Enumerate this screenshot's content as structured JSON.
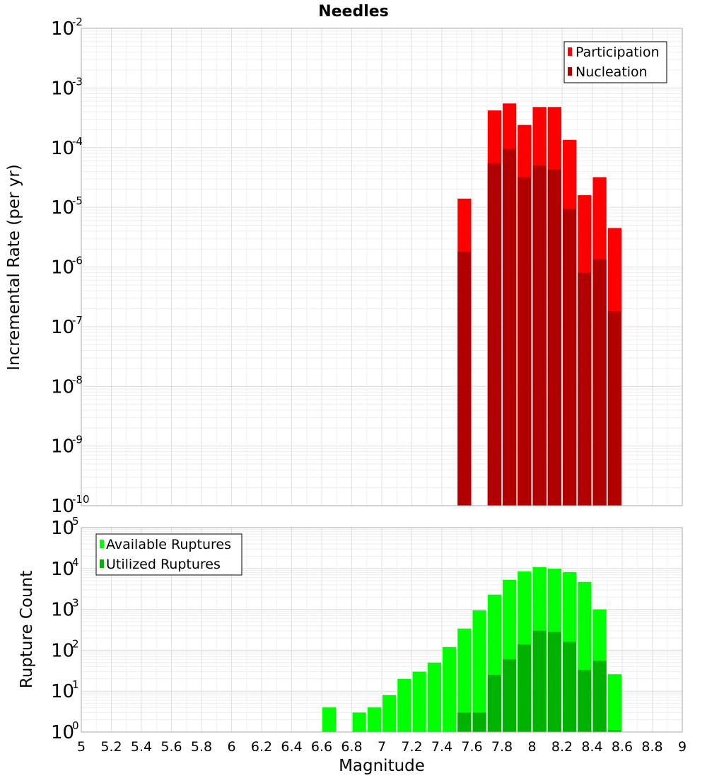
{
  "chart_data": [
    {
      "type": "bar",
      "title": "Needles",
      "xlabel": "Magnitude",
      "ylabel": "Incremental Rate (per yr)",
      "yscale": "log",
      "ylim_exp": [
        -10,
        -2
      ],
      "xlim": [
        5,
        9
      ],
      "bin_width": 0.1,
      "legend_position": "top-right",
      "series": [
        {
          "name": "Participation",
          "color": "#ff0000",
          "points": [
            [
              7.55,
              1.4e-05
            ],
            [
              7.75,
              0.00042
            ],
            [
              7.85,
              0.00055
            ],
            [
              7.95,
              0.00024
            ],
            [
              8.05,
              0.00048
            ],
            [
              8.15,
              0.00048
            ],
            [
              8.25,
              0.000135
            ],
            [
              8.35,
              1.6e-05
            ],
            [
              8.45,
              3.2e-05
            ],
            [
              8.55,
              4.5e-06
            ]
          ]
        },
        {
          "name": "Nucleation",
          "color": "#b20000",
          "points": [
            [
              7.55,
              1.8e-06
            ],
            [
              7.75,
              5.5e-05
            ],
            [
              7.85,
              9.5e-05
            ],
            [
              7.95,
              3.2e-05
            ],
            [
              8.05,
              5e-05
            ],
            [
              8.15,
              4.3e-05
            ],
            [
              8.25,
              9.5e-06
            ],
            [
              8.35,
              8e-07
            ],
            [
              8.45,
              1.35e-06
            ],
            [
              8.55,
              1.8e-07
            ]
          ]
        }
      ]
    },
    {
      "type": "bar",
      "title": "",
      "xlabel": "Magnitude",
      "ylabel": "Rupture Count",
      "yscale": "log",
      "ylim_exp": [
        0,
        5
      ],
      "xlim": [
        5,
        9
      ],
      "bin_width": 0.1,
      "legend_position": "top-left",
      "xticks": [
        "5",
        "5.2",
        "5.4",
        "5.6",
        "5.8",
        "6",
        "6.2",
        "6.4",
        "6.6",
        "6.8",
        "7",
        "7.2",
        "7.4",
        "7.6",
        "7.8",
        "8",
        "8.2",
        "8.4",
        "8.6",
        "8.8",
        "9"
      ],
      "series": [
        {
          "name": "Available Ruptures",
          "color": "#00ff00",
          "points": [
            [
              6.65,
              4
            ],
            [
              6.85,
              3
            ],
            [
              6.95,
              4
            ],
            [
              7.05,
              8
            ],
            [
              7.15,
              20
            ],
            [
              7.25,
              30
            ],
            [
              7.35,
              50
            ],
            [
              7.45,
              120
            ],
            [
              7.55,
              340
            ],
            [
              7.65,
              950
            ],
            [
              7.75,
              2300
            ],
            [
              7.85,
              5300
            ],
            [
              7.95,
              8500
            ],
            [
              8.05,
              10800
            ],
            [
              8.15,
              9900
            ],
            [
              8.25,
              8200
            ],
            [
              8.35,
              4700
            ],
            [
              8.45,
              1000
            ],
            [
              8.55,
              26
            ]
          ]
        },
        {
          "name": "Utilized Ruptures",
          "color": "#00b200",
          "points": [
            [
              7.55,
              3
            ],
            [
              7.65,
              3
            ],
            [
              7.75,
              25
            ],
            [
              7.85,
              60
            ],
            [
              7.95,
              140
            ],
            [
              8.05,
              300
            ],
            [
              8.15,
              280
            ],
            [
              8.25,
              160
            ],
            [
              8.35,
              33
            ],
            [
              8.45,
              55
            ],
            [
              8.55,
              1.1
            ]
          ]
        }
      ]
    }
  ]
}
